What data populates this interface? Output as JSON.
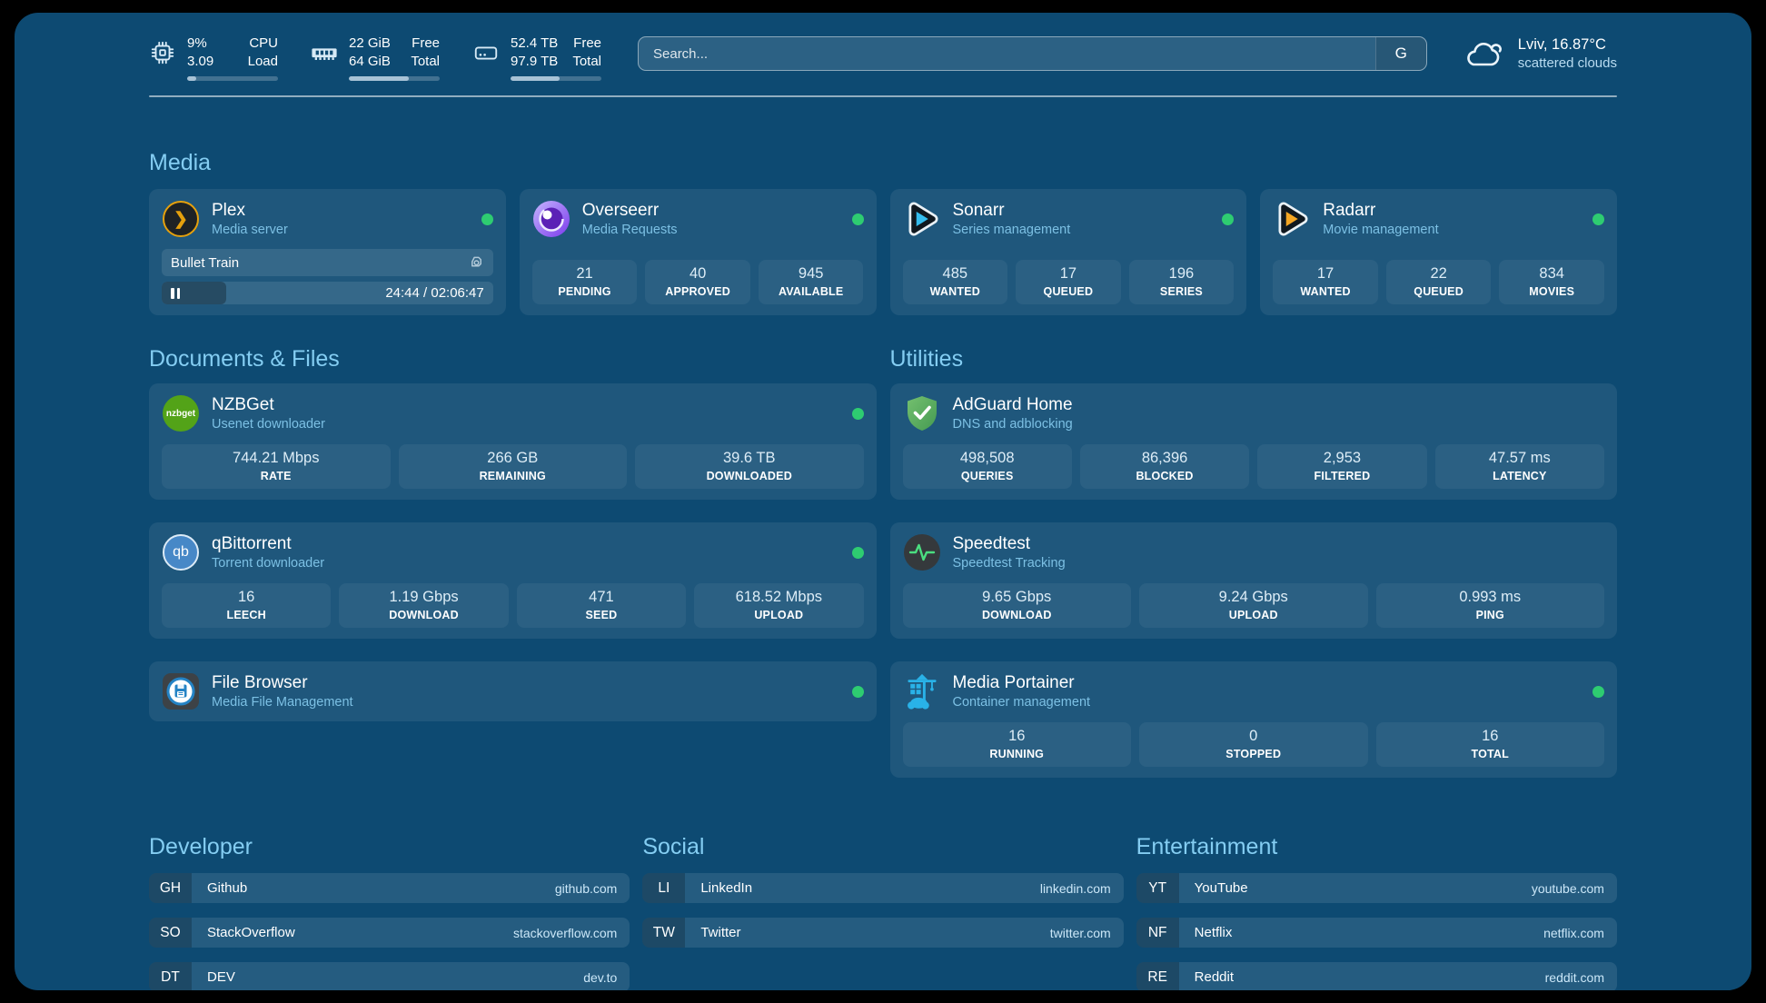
{
  "header": {
    "resources": [
      {
        "icon": "cpu-icon",
        "values": [
          "9%",
          "3.09"
        ],
        "labels": [
          "CPU",
          "Load"
        ],
        "progress_pct": 10
      },
      {
        "icon": "memory-icon",
        "values": [
          "22 GiB",
          "64 GiB"
        ],
        "labels": [
          "Free",
          "Total"
        ],
        "progress_pct": 66
      },
      {
        "icon": "disk-icon",
        "values": [
          "52.4 TB",
          "97.9 TB"
        ],
        "labels": [
          "Free",
          "Total"
        ],
        "progress_pct": 54
      }
    ],
    "search": {
      "placeholder": "Search...",
      "engine_button": "G"
    },
    "weather": {
      "location": "Lviv, 16.87°C",
      "condition": "scattered clouds"
    }
  },
  "media": {
    "title": "Media",
    "plex": {
      "name": "Plex",
      "desc": "Media server",
      "status": "online",
      "now_playing": {
        "title": "Bullet Train",
        "time": "24:44 / 02:06:47",
        "progress_pct": 19.5
      }
    },
    "overseerr": {
      "name": "Overseerr",
      "desc": "Media Requests",
      "status": "online",
      "stats": [
        {
          "value": "21",
          "label": "PENDING"
        },
        {
          "value": "40",
          "label": "APPROVED"
        },
        {
          "value": "945",
          "label": "AVAILABLE"
        }
      ]
    },
    "sonarr": {
      "name": "Sonarr",
      "desc": "Series management",
      "status": "online",
      "stats": [
        {
          "value": "485",
          "label": "WANTED"
        },
        {
          "value": "17",
          "label": "QUEUED"
        },
        {
          "value": "196",
          "label": "SERIES"
        }
      ]
    },
    "radarr": {
      "name": "Radarr",
      "desc": "Movie management",
      "status": "online",
      "stats": [
        {
          "value": "17",
          "label": "WANTED"
        },
        {
          "value": "22",
          "label": "QUEUED"
        },
        {
          "value": "834",
          "label": "MOVIES"
        }
      ]
    }
  },
  "documents": {
    "title": "Documents & Files",
    "nzbget": {
      "name": "NZBGet",
      "desc": "Usenet downloader",
      "status": "online",
      "icon_text": "nzbget",
      "stats": [
        {
          "value": "744.21 Mbps",
          "label": "RATE"
        },
        {
          "value": "266 GB",
          "label": "REMAINING"
        },
        {
          "value": "39.6 TB",
          "label": "DOWNLOADED"
        }
      ]
    },
    "qbittorrent": {
      "name": "qBittorrent",
      "desc": "Torrent downloader",
      "status": "online",
      "icon_text": "qb",
      "stats": [
        {
          "value": "16",
          "label": "LEECH"
        },
        {
          "value": "1.19 Gbps",
          "label": "DOWNLOAD"
        },
        {
          "value": "471",
          "label": "SEED"
        },
        {
          "value": "618.52 Mbps",
          "label": "UPLOAD"
        }
      ]
    },
    "filebrowser": {
      "name": "File Browser",
      "desc": "Media File Management",
      "status": "online"
    }
  },
  "utilities": {
    "title": "Utilities",
    "adguard": {
      "name": "AdGuard Home",
      "desc": "DNS and adblocking",
      "stats": [
        {
          "value": "498,508",
          "label": "QUERIES"
        },
        {
          "value": "86,396",
          "label": "BLOCKED"
        },
        {
          "value": "2,953",
          "label": "FILTERED"
        },
        {
          "value": "47.57 ms",
          "label": "LATENCY"
        }
      ]
    },
    "speedtest": {
      "name": "Speedtest",
      "desc": "Speedtest Tracking",
      "stats": [
        {
          "value": "9.65 Gbps",
          "label": "DOWNLOAD"
        },
        {
          "value": "9.24 Gbps",
          "label": "UPLOAD"
        },
        {
          "value": "0.993 ms",
          "label": "PING"
        }
      ]
    },
    "portainer": {
      "name": "Media Portainer",
      "desc": "Container management",
      "status": "online",
      "stats": [
        {
          "value": "16",
          "label": "RUNNING"
        },
        {
          "value": "0",
          "label": "STOPPED"
        },
        {
          "value": "16",
          "label": "TOTAL"
        }
      ]
    }
  },
  "bookmarks": [
    {
      "title": "Developer",
      "items": [
        {
          "abbr": "GH",
          "name": "Github",
          "link": "github.com"
        },
        {
          "abbr": "SO",
          "name": "StackOverflow",
          "link": "stackoverflow.com"
        },
        {
          "abbr": "DT",
          "name": "DEV",
          "link": "dev.to"
        }
      ]
    },
    {
      "title": "Social",
      "items": [
        {
          "abbr": "LI",
          "name": "LinkedIn",
          "link": "linkedin.com"
        },
        {
          "abbr": "TW",
          "name": "Twitter",
          "link": "twitter.com"
        }
      ]
    },
    {
      "title": "Entertainment",
      "items": [
        {
          "abbr": "YT",
          "name": "YouTube",
          "link": "youtube.com"
        },
        {
          "abbr": "NF",
          "name": "Netflix",
          "link": "netflix.com"
        },
        {
          "abbr": "RE",
          "name": "Reddit",
          "link": "reddit.com"
        }
      ]
    }
  ],
  "colors": {
    "status_online": "#2ecc71",
    "accent": "#84cdf2",
    "page_bg": "#0d4a72"
  }
}
